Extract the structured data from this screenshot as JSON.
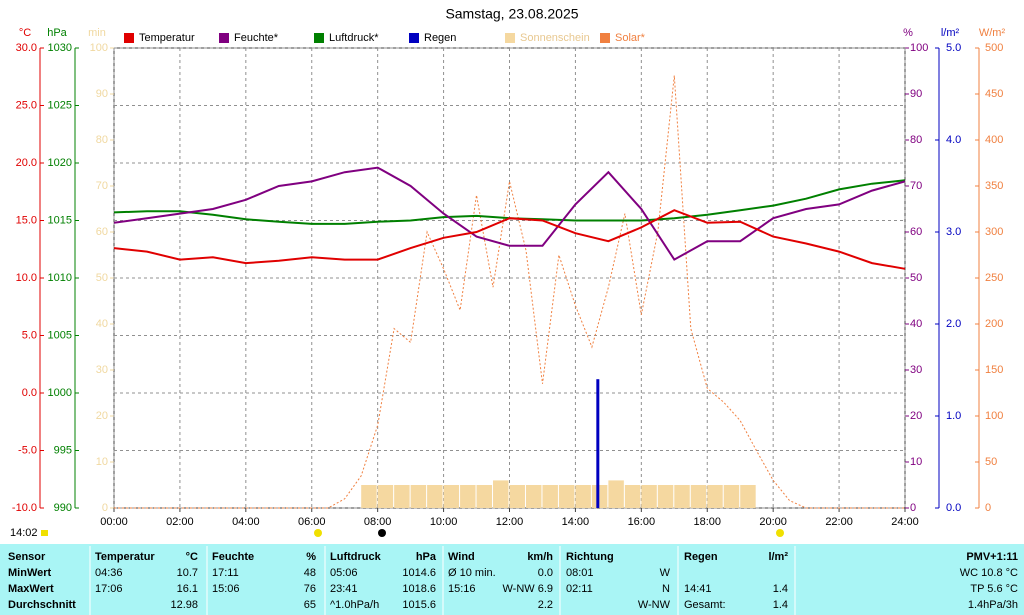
{
  "chart_data": {
    "type": "line",
    "title": "Samstag, 23.08.2025",
    "time_marker": "14:02",
    "grid": true,
    "xlim": [
      0,
      24
    ],
    "xticks": [
      {
        "value": 0,
        "label": "00:00"
      },
      {
        "value": 2,
        "label": "02:00"
      },
      {
        "value": 4,
        "label": "04:00"
      },
      {
        "value": 6,
        "label": "06:00"
      },
      {
        "value": 8,
        "label": "08:00"
      },
      {
        "value": 10,
        "label": "10:00"
      },
      {
        "value": 12,
        "label": "12:00"
      },
      {
        "value": 14,
        "label": "14:00"
      },
      {
        "value": 16,
        "label": "16:00"
      },
      {
        "value": 18,
        "label": "18:00"
      },
      {
        "value": 20,
        "label": "20:00"
      },
      {
        "value": 22,
        "label": "22:00"
      },
      {
        "value": 24,
        "label": "24:00"
      }
    ],
    "axes": [
      {
        "unit": "°C",
        "color": "#e00000",
        "lim": [
          -10,
          30
        ],
        "ticks": [
          {
            "value": -10,
            "label": "-10.0"
          },
          {
            "value": -5,
            "label": "-5.0"
          },
          {
            "value": 0,
            "label": "0.0"
          },
          {
            "value": 5,
            "label": "5.0"
          },
          {
            "value": 10,
            "label": "10.0"
          },
          {
            "value": 15,
            "label": "15.0"
          },
          {
            "value": 20,
            "label": "20.0"
          },
          {
            "value": 25,
            "label": "25.0"
          },
          {
            "value": 30,
            "label": "30.0"
          }
        ]
      },
      {
        "unit": "hPa",
        "color": "#008000",
        "lim": [
          990,
          1030
        ],
        "ticks": [
          990,
          995,
          1000,
          1005,
          1010,
          1015,
          1020,
          1025,
          1030
        ]
      },
      {
        "unit": "min",
        "color": "#f0d8a0",
        "lim": [
          0,
          100
        ],
        "ticks": [
          0,
          10,
          20,
          30,
          40,
          50,
          60,
          70,
          80,
          90,
          100
        ]
      },
      {
        "unit": "%",
        "color": "#800080",
        "lim": [
          0,
          100
        ],
        "ticks": [
          0,
          10,
          20,
          30,
          40,
          50,
          60,
          70,
          80,
          90,
          100
        ]
      },
      {
        "unit": "l/m²",
        "color": "#0000c0",
        "lim": [
          0,
          5
        ],
        "ticks": [
          {
            "value": 0,
            "label": "0.0"
          },
          {
            "value": 1,
            "label": "1.0"
          },
          {
            "value": 2,
            "label": "2.0"
          },
          {
            "value": 3,
            "label": "3.0"
          },
          {
            "value": 4,
            "label": "4.0"
          },
          {
            "value": 5,
            "label": "5.0"
          }
        ]
      },
      {
        "unit": "W/m²",
        "color": "#f08040",
        "lim": [
          0,
          500
        ],
        "ticks": [
          0,
          50,
          100,
          150,
          200,
          250,
          300,
          350,
          400,
          450,
          500
        ]
      }
    ],
    "series": [
      {
        "name": "Temperatur",
        "color": "#e00000",
        "axis": 0,
        "type": "line",
        "x": [
          0,
          1,
          2,
          3,
          4,
          5,
          6,
          7,
          8,
          9,
          10,
          11,
          12,
          13,
          14,
          15,
          16,
          17,
          18,
          19,
          20,
          21,
          22,
          23,
          24
        ],
        "values": [
          12.6,
          12.3,
          11.6,
          11.8,
          11.3,
          11.5,
          11.8,
          11.6,
          11.6,
          12.6,
          13.5,
          14.0,
          15.2,
          15.0,
          13.9,
          13.2,
          14.4,
          15.9,
          14.8,
          14.9,
          13.6,
          13.0,
          12.3,
          11.3,
          10.8
        ]
      },
      {
        "name": "Feuchte*",
        "color": "#800080",
        "axis": 3,
        "type": "line",
        "x": [
          0,
          1,
          2,
          3,
          4,
          5,
          6,
          7,
          8,
          9,
          10,
          11,
          12,
          13,
          14,
          15,
          16,
          17,
          18,
          19,
          20,
          21,
          22,
          23,
          24
        ],
        "values": [
          62,
          63,
          64,
          65,
          67,
          70,
          71,
          73,
          74,
          70,
          64,
          59,
          57,
          57,
          66,
          73,
          65,
          54,
          58,
          58,
          63,
          65,
          66,
          69,
          71
        ]
      },
      {
        "name": "Luftdruck*",
        "color": "#008000",
        "axis": 1,
        "type": "line",
        "x": [
          0,
          1,
          2,
          3,
          4,
          5,
          6,
          7,
          8,
          9,
          10,
          11,
          12,
          13,
          14,
          15,
          16,
          17,
          18,
          19,
          20,
          21,
          22,
          23,
          24
        ],
        "values": [
          1015.7,
          1015.8,
          1015.8,
          1015.5,
          1015.1,
          1014.9,
          1014.7,
          1014.7,
          1014.9,
          1015.0,
          1015.3,
          1015.4,
          1015.2,
          1015.1,
          1015.0,
          1015.0,
          1015.0,
          1015.2,
          1015.5,
          1015.9,
          1016.3,
          1016.9,
          1017.7,
          1018.2,
          1018.5
        ]
      },
      {
        "name": "Regen",
        "color": "#0000c0",
        "axis": 4,
        "type": "bar",
        "x": [
          14.68
        ],
        "values": [
          1.4
        ]
      },
      {
        "name": "Sonnenschein",
        "color": "#f5d8a0",
        "axis": 2,
        "type": "bar",
        "x": [
          7.5,
          8,
          8.5,
          9,
          9.5,
          10,
          10.5,
          11,
          11.5,
          12,
          12.5,
          13,
          13.5,
          14,
          14.5,
          15,
          15.5,
          16,
          16.5,
          17,
          17.5,
          18,
          18.5,
          19
        ],
        "values": [
          5,
          5,
          5,
          5,
          5,
          5,
          5,
          5,
          6,
          5,
          5,
          5,
          5,
          5,
          5,
          6,
          5,
          5,
          5,
          5,
          5,
          5,
          5,
          5
        ]
      },
      {
        "name": "Solar*",
        "color": "#f08040",
        "axis": 5,
        "type": "dotted",
        "x": [
          0,
          0.5,
          1,
          1.5,
          2,
          2.5,
          3,
          3.5,
          4,
          4.5,
          5,
          5.5,
          6,
          6.5,
          7,
          7.5,
          8,
          8.5,
          9,
          9.5,
          10,
          10.5,
          11,
          11.5,
          12,
          12.5,
          13,
          13.5,
          14,
          14.5,
          15,
          15.5,
          16,
          16.5,
          17,
          17.5,
          18,
          18.5,
          19,
          19.5,
          20,
          20.5,
          21,
          21.5,
          22,
          22.5,
          23,
          23.5,
          24
        ],
        "values": [
          0,
          0,
          0,
          0,
          0,
          0,
          0,
          0,
          0,
          0,
          0,
          0,
          0,
          0,
          10,
          35,
          90,
          195,
          180,
          300,
          260,
          215,
          340,
          240,
          355,
          280,
          135,
          275,
          220,
          175,
          240,
          320,
          210,
          300,
          470,
          195,
          130,
          115,
          95,
          62,
          30,
          8,
          0,
          0,
          0,
          0,
          0,
          0,
          0
        ]
      }
    ]
  },
  "table": {
    "rows": [
      [
        "Sensor",
        "Temperatur",
        "°C",
        "Feuchte",
        "%",
        "Luftdruck",
        "hPa",
        "Wind",
        "km/h",
        "Richtung",
        null,
        "Regen",
        "l/m²",
        "PMV+1:11"
      ],
      [
        "MinWert",
        "04:36",
        "10.7",
        "17:11",
        "48",
        "05:06",
        "1014.6",
        "Ø 10 min.",
        "0.0",
        "08:01",
        "W",
        null,
        null,
        "WC 10.8 °C"
      ],
      [
        "MaxWert",
        "17:06",
        "16.1",
        "15:06",
        "76",
        "23:41",
        "1018.6",
        "15:16",
        "W-NW 6.9",
        "02:11",
        "N",
        "14:41",
        "1.4",
        "TP 5.6 °C"
      ],
      [
        "Durchschnitt",
        null,
        "12.98",
        null,
        "65",
        "^1.0hPa/h",
        "1015.6",
        null,
        "2.2",
        null,
        "W-NW",
        "Gesamt:",
        "1.4",
        "1.4hPa/3h"
      ]
    ]
  }
}
